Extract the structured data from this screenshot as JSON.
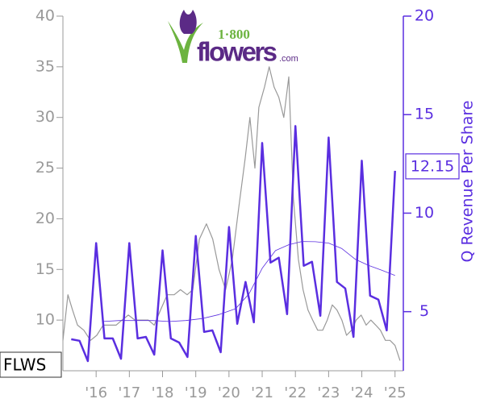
{
  "chart_data": {
    "type": "line",
    "logo": {
      "number": "1·800",
      "name": "flowers",
      "suffix": ".com"
    },
    "y2label": "Q Revenue Per Share",
    "xlim": [
      2015,
      2025.25
    ],
    "xticks": [
      {
        "value": 2016,
        "label": "'16"
      },
      {
        "value": 2017,
        "label": "'17"
      },
      {
        "value": 2018,
        "label": "'18"
      },
      {
        "value": 2019,
        "label": "'19"
      },
      {
        "value": 2020,
        "label": "'20"
      },
      {
        "value": 2021,
        "label": "'21"
      },
      {
        "value": 2022,
        "label": "'22"
      },
      {
        "value": 2023,
        "label": "'23"
      },
      {
        "value": 2024,
        "label": "'24"
      },
      {
        "value": 2025,
        "label": "'25"
      }
    ],
    "ylim": [
      5,
      40
    ],
    "yticks": [
      10,
      15,
      20,
      25,
      30,
      35,
      40
    ],
    "y2lim": [
      2,
      20
    ],
    "y2ticks": [
      5,
      10,
      15,
      20
    ],
    "series": [
      {
        "name": "FLWS",
        "color": "#999999",
        "width": 1.2,
        "x": [
          2015.0,
          2015.15,
          2015.29,
          2015.44,
          2015.63,
          2015.83,
          2016.02,
          2016.21,
          2016.4,
          2016.6,
          2016.78,
          2016.97,
          2017.17,
          2017.38,
          2017.57,
          2017.75,
          2017.94,
          2018.14,
          2018.35,
          2018.54,
          2018.74,
          2018.91,
          2019.11,
          2019.32,
          2019.51,
          2019.7,
          2019.9,
          2020.1,
          2020.29,
          2020.49,
          2020.63,
          2020.78,
          2020.9,
          2021.07,
          2021.21,
          2021.36,
          2021.5,
          2021.65,
          2021.8,
          2021.94,
          2022.09,
          2022.23,
          2022.38,
          2022.52,
          2022.67,
          2022.82,
          2022.96,
          2023.11,
          2023.25,
          2023.4,
          2023.54,
          2023.69,
          2023.83,
          2023.98,
          2024.13,
          2024.27,
          2024.42,
          2024.56,
          2024.71,
          2024.85,
          2025.0,
          2025.15
        ],
        "values": [
          8,
          12.5,
          11,
          9.5,
          9,
          8,
          8.5,
          9.5,
          9.5,
          9.5,
          10,
          10.5,
          10,
          10,
          10,
          9.5,
          11,
          12.5,
          12.5,
          13,
          12.5,
          13,
          18,
          19.5,
          18,
          15,
          13,
          16,
          21,
          26,
          30,
          25,
          31,
          33,
          35,
          33,
          32,
          30,
          34,
          22,
          16,
          13,
          11,
          10,
          9,
          9,
          10,
          11.5,
          11,
          10,
          8.5,
          9,
          10,
          10.5,
          9.5,
          10,
          9.5,
          9,
          8,
          8,
          7.5,
          6
        ]
      },
      {
        "color": "#5a2ee0",
        "axis": "y2",
        "width": 0.8,
        "x": [
          2016.2,
          2016.7,
          2017.2,
          2017.7,
          2018.2,
          2018.7,
          2019.2,
          2019.7,
          2020.2,
          2020.6,
          2021.0,
          2021.4,
          2021.8,
          2022.2,
          2022.6,
          2023.0,
          2023.4,
          2023.8,
          2024.2,
          2024.6,
          2025.0
        ],
        "values": [
          4.5,
          4.55,
          4.55,
          4.55,
          4.5,
          4.55,
          4.65,
          4.85,
          5.15,
          5.9,
          7.2,
          8.1,
          8.4,
          8.56,
          8.55,
          8.48,
          8.2,
          7.66,
          7.35,
          7.1,
          6.84
        ]
      },
      {
        "color": "#5a2ee0",
        "axis": "y2",
        "width": 2.5,
        "x": [
          2015.25,
          2015.5,
          2015.75,
          2016.0,
          2016.25,
          2016.5,
          2016.75,
          2017.0,
          2017.25,
          2017.5,
          2017.75,
          2018.0,
          2018.25,
          2018.5,
          2018.75,
          2019.0,
          2019.25,
          2019.5,
          2019.75,
          2020.0,
          2020.25,
          2020.5,
          2020.75,
          2021.0,
          2021.25,
          2021.5,
          2021.75,
          2022.0,
          2022.25,
          2022.5,
          2022.75,
          2023.0,
          2023.25,
          2023.5,
          2023.75,
          2024.0,
          2024.25,
          2024.5,
          2024.75,
          2025.0
        ],
        "values": [
          3.6,
          3.52,
          2.49,
          8.48,
          3.64,
          3.64,
          2.61,
          8.48,
          3.64,
          3.72,
          2.82,
          8.11,
          3.64,
          3.43,
          2.7,
          8.84,
          3.97,
          4.05,
          2.94,
          9.3,
          4.38,
          6.51,
          4.46,
          13.56,
          7.49,
          7.74,
          4.87,
          14.42,
          7.33,
          7.53,
          4.79,
          13.84,
          6.51,
          6.18,
          3.72,
          12.66,
          5.81,
          5.61,
          4.05,
          12.15
        ],
        "value_labels": [
          null,
          null,
          null,
          null,
          null,
          null,
          null,
          null,
          null,
          null,
          null,
          null,
          null,
          null,
          null,
          null,
          null,
          null,
          null,
          null,
          null,
          null,
          null,
          null,
          null,
          null,
          null,
          null,
          null,
          null,
          null,
          null,
          null,
          null,
          null,
          null,
          null,
          null,
          null,
          "12.15"
        ]
      }
    ]
  }
}
